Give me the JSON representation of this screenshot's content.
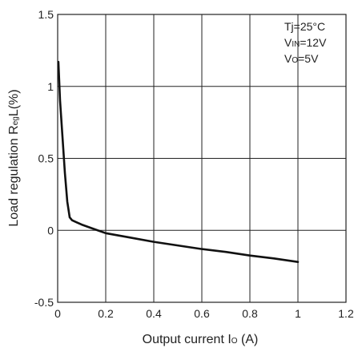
{
  "chart_data": {
    "type": "line",
    "xlabel": {
      "main": "Output current I",
      "sub": "O",
      "unit": " (A)"
    },
    "ylabel": {
      "main": "Load regulation R",
      "sub": "eg",
      "tail": "L(%)"
    },
    "xlim": [
      0,
      1.2
    ],
    "ylim": [
      -0.5,
      1.5
    ],
    "x_ticks": [
      "0",
      "0.2",
      "0.4",
      "0.6",
      "0.8",
      "1",
      "1.2"
    ],
    "y_ticks": [
      "-0.5",
      "0",
      "0.5",
      "1",
      "1.5"
    ],
    "grid": true,
    "annotations": [
      {
        "main": "Tj=25°C",
        "sub": "",
        "tail": ""
      },
      {
        "main": "V",
        "sub": "IN",
        "tail": "=12V"
      },
      {
        "main": "V",
        "sub": "O",
        "tail": "=5V"
      }
    ],
    "series": [
      {
        "x": [
          0.003,
          0.01,
          0.02,
          0.03,
          0.04,
          0.05,
          0.06,
          0.08,
          0.1,
          0.15,
          0.2,
          0.3,
          0.4,
          0.5,
          0.6,
          0.7,
          0.8,
          0.9,
          1.0
        ],
        "y": [
          1.17,
          0.9,
          0.65,
          0.4,
          0.2,
          0.09,
          0.07,
          0.055,
          0.04,
          0.01,
          -0.02,
          -0.05,
          -0.08,
          -0.105,
          -0.13,
          -0.15,
          -0.175,
          -0.195,
          -0.22
        ]
      }
    ]
  }
}
